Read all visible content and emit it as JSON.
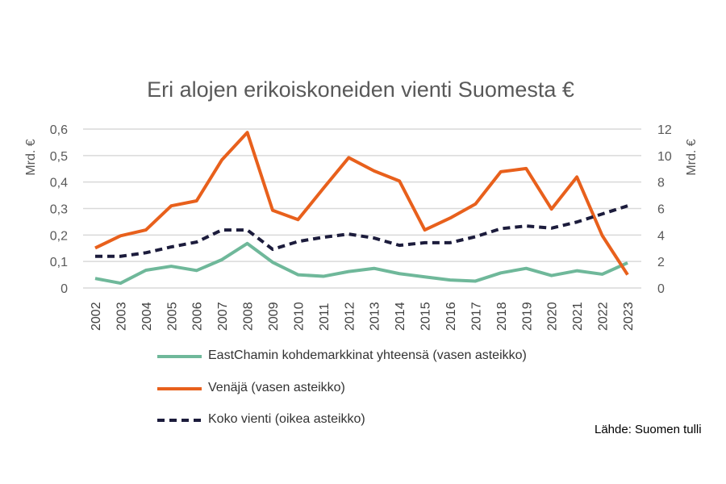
{
  "chart_data": {
    "type": "line",
    "title": "Eri alojen erikoiskoneiden vienti Suomesta €",
    "ylabel_left": "Mrd. €",
    "ylabel_right": "Mrd. €",
    "ylim_left": [
      0,
      0.6
    ],
    "ylim_right": [
      0,
      12
    ],
    "yticks_left": [
      "0",
      "0,1",
      "0,2",
      "0,3",
      "0,4",
      "0,5",
      "0,6"
    ],
    "yticks_right": [
      "0",
      "2",
      "4",
      "6",
      "8",
      "10",
      "12"
    ],
    "grid": true,
    "legend_placement": "bottom",
    "x": [
      "2002",
      "2003",
      "2004",
      "2005",
      "2006",
      "2007",
      "2008",
      "2009",
      "2010",
      "2011",
      "2012",
      "2013",
      "2014",
      "2015",
      "2016",
      "2017",
      "2018",
      "2019",
      "2020",
      "2021",
      "2022",
      "2023"
    ],
    "series": [
      {
        "name": "EastChamin kohdemarkkinat yhteensä (vasen asteikko)",
        "axis": "left",
        "color": "#6fb89a",
        "dashed": false,
        "values": [
          0.036,
          0.018,
          0.067,
          0.082,
          0.066,
          0.107,
          0.168,
          0.097,
          0.05,
          0.044,
          0.062,
          0.074,
          0.054,
          0.042,
          0.03,
          0.026,
          0.057,
          0.074,
          0.047,
          0.065,
          0.052,
          0.095
        ]
      },
      {
        "name": "Venäjä (vasen asteikko)",
        "axis": "left",
        "color": "#e8601c",
        "dashed": false,
        "values": [
          0.151,
          0.197,
          0.219,
          0.31,
          0.329,
          0.484,
          0.587,
          0.293,
          0.258,
          0.376,
          0.492,
          0.442,
          0.404,
          0.219,
          0.264,
          0.317,
          0.439,
          0.451,
          0.298,
          0.419,
          0.198,
          0.05
        ]
      },
      {
        "name": "Koko vienti (oikea asteikko)",
        "axis": "right",
        "color": "#1c1c3c",
        "dashed": true,
        "values": [
          2.39,
          2.39,
          2.66,
          3.1,
          3.47,
          4.38,
          4.38,
          2.92,
          3.51,
          3.83,
          4.07,
          3.77,
          3.22,
          3.42,
          3.42,
          3.87,
          4.48,
          4.68,
          4.52,
          4.98,
          5.59,
          6.2
        ]
      }
    ],
    "source": "Lähde: Suomen tulli"
  }
}
